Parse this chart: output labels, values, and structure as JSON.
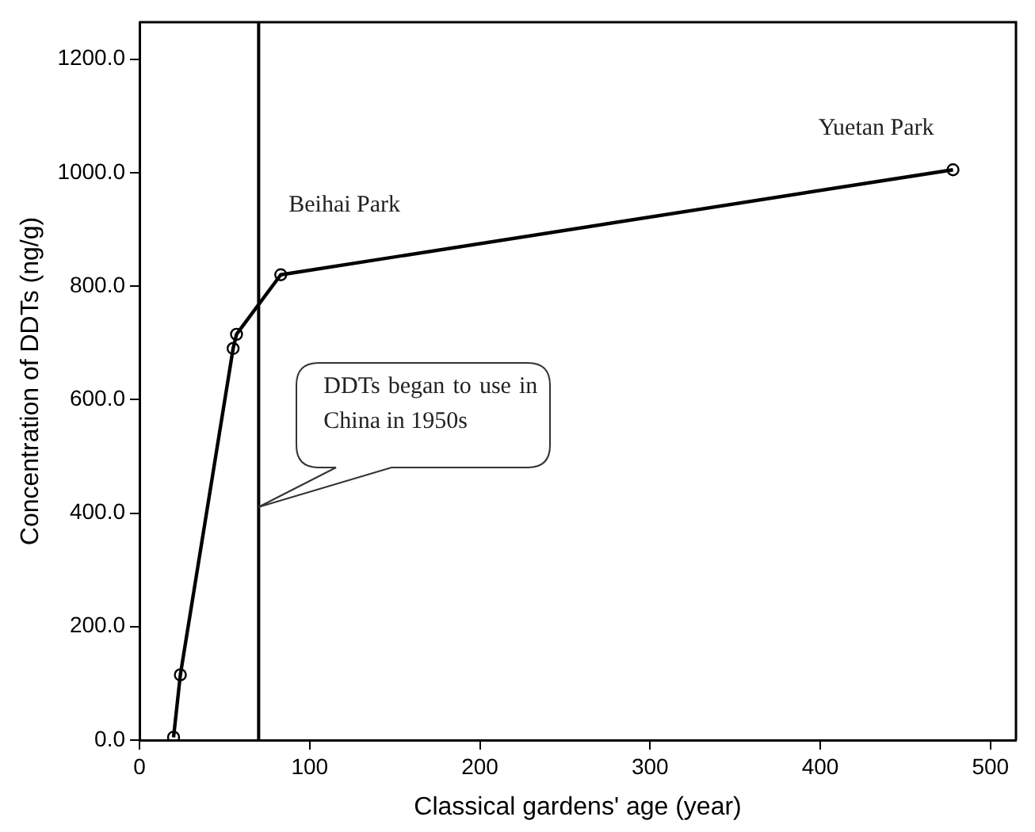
{
  "chart_data": {
    "type": "line",
    "xlabel": "Classical gardens' age (year)",
    "ylabel": "Concentration of DDTs (ng/g)",
    "x": [
      20,
      24,
      55,
      57,
      83,
      478
    ],
    "series": [
      {
        "color": "#000000",
        "values": [
          5,
          115,
          690,
          715,
          820,
          1005
        ]
      }
    ],
    "xlim": [
      0,
      515
    ],
    "xticks": [
      0,
      100,
      200,
      300,
      400,
      500
    ],
    "ylim": [
      0,
      1265
    ],
    "yticks": [
      {
        "value": 0,
        "label": "0.0"
      },
      {
        "value": 200,
        "label": "200.0"
      },
      {
        "value": 400,
        "label": "400.0"
      },
      {
        "value": 600,
        "label": "600.0"
      },
      {
        "value": 800,
        "label": "800.0"
      },
      {
        "value": 1000,
        "label": "1000.0"
      },
      {
        "value": 1200,
        "label": "1200.0"
      }
    ],
    "ref_lines": [
      {
        "axis": "x",
        "value": 70,
        "color": "#000000"
      }
    ],
    "annotations": [
      {
        "text": "Beihai Park",
        "x": 83,
        "y": 820
      },
      {
        "text": "Yuetan Park",
        "x": 478,
        "y": 1005
      },
      "DDTs began to use in China in 1950s"
    ],
    "marker": "circle",
    "line_style": "solid",
    "grid": false,
    "legend": false
  }
}
